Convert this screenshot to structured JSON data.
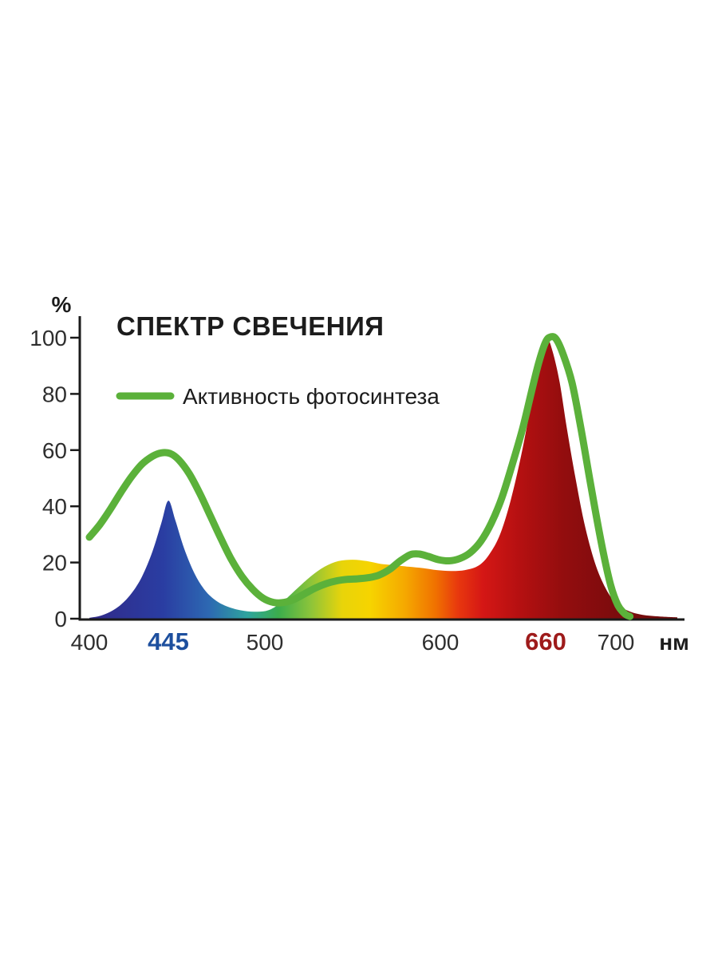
{
  "page": {
    "background": "#ffffff"
  },
  "chart_data": {
    "type": "area",
    "title": "СПЕКТР СВЕЧЕНИЯ",
    "ylabel": "%",
    "x_unit": "нм",
    "axis_color": "#1a1a1a",
    "tick_color": "#2e2e2e",
    "ylim": [
      0,
      100
    ],
    "xlim": [
      400,
      735
    ],
    "yticks": [
      0,
      20,
      40,
      60,
      80,
      100
    ],
    "xticks": [
      {
        "value": 400,
        "label": "400",
        "color": "#2e2e2e",
        "bold": false
      },
      {
        "value": 445,
        "label": "445",
        "color": "#1d4f9e",
        "bold": true
      },
      {
        "value": 500,
        "label": "500",
        "color": "#2e2e2e",
        "bold": false
      },
      {
        "value": 600,
        "label": "600",
        "color": "#2e2e2e",
        "bold": false
      },
      {
        "value": 660,
        "label": "660",
        "color": "#9e1b1b",
        "bold": true
      },
      {
        "value": 700,
        "label": "700",
        "color": "#2e2e2e",
        "bold": false
      }
    ],
    "legend": {
      "label": "Активность фотосинтеза",
      "color": "#5bb13a"
    },
    "series": [
      {
        "name": "emission-spectrum",
        "type": "area-gradient",
        "points": [
          [
            400,
            0.3
          ],
          [
            406,
            1
          ],
          [
            412,
            2.5
          ],
          [
            418,
            5
          ],
          [
            424,
            9
          ],
          [
            430,
            15
          ],
          [
            436,
            24
          ],
          [
            441,
            34
          ],
          [
            445,
            42
          ],
          [
            449,
            35
          ],
          [
            454,
            25
          ],
          [
            460,
            16
          ],
          [
            466,
            10
          ],
          [
            472,
            6.5
          ],
          [
            478,
            4.5
          ],
          [
            486,
            3
          ],
          [
            494,
            2.5
          ],
          [
            502,
            3
          ],
          [
            510,
            6
          ],
          [
            518,
            10.5
          ],
          [
            526,
            15
          ],
          [
            534,
            18.5
          ],
          [
            542,
            20.5
          ],
          [
            550,
            21
          ],
          [
            558,
            20.5
          ],
          [
            566,
            19.5
          ],
          [
            574,
            19
          ],
          [
            582,
            18.5
          ],
          [
            590,
            18
          ],
          [
            598,
            17.3
          ],
          [
            606,
            17
          ],
          [
            614,
            17.3
          ],
          [
            622,
            19
          ],
          [
            628,
            23
          ],
          [
            634,
            30
          ],
          [
            640,
            42
          ],
          [
            646,
            58
          ],
          [
            651,
            74
          ],
          [
            655,
            87
          ],
          [
            658,
            95
          ],
          [
            661,
            99.5
          ],
          [
            664,
            95
          ],
          [
            668,
            84
          ],
          [
            672,
            68
          ],
          [
            677,
            50
          ],
          [
            682,
            34
          ],
          [
            688,
            20
          ],
          [
            694,
            11
          ],
          [
            700,
            5.5
          ],
          [
            707,
            2.8
          ],
          [
            715,
            1.4
          ],
          [
            725,
            0.8
          ],
          [
            735,
            0.5
          ]
        ]
      },
      {
        "name": "photosynthesis-activity",
        "type": "line",
        "color": "#5bb13a",
        "points": [
          [
            400,
            29
          ],
          [
            406,
            33.5
          ],
          [
            412,
            39
          ],
          [
            418,
            45
          ],
          [
            424,
            50.5
          ],
          [
            430,
            55
          ],
          [
            436,
            57.8
          ],
          [
            441,
            59
          ],
          [
            446,
            58.8
          ],
          [
            451,
            56.5
          ],
          [
            457,
            51.5
          ],
          [
            463,
            44.5
          ],
          [
            469,
            36.5
          ],
          [
            475,
            28.5
          ],
          [
            481,
            21
          ],
          [
            487,
            15
          ],
          [
            493,
            10.5
          ],
          [
            499,
            7.3
          ],
          [
            505,
            5.8
          ],
          [
            511,
            5.8
          ],
          [
            517,
            7
          ],
          [
            523,
            9
          ],
          [
            529,
            11
          ],
          [
            535,
            12.5
          ],
          [
            541,
            13.5
          ],
          [
            547,
            14
          ],
          [
            553,
            14.2
          ],
          [
            559,
            14.6
          ],
          [
            565,
            15.5
          ],
          [
            571,
            17.5
          ],
          [
            577,
            20.5
          ],
          [
            583,
            22.8
          ],
          [
            588,
            23
          ],
          [
            593,
            22.2
          ],
          [
            599,
            21
          ],
          [
            605,
            20.6
          ],
          [
            611,
            21.4
          ],
          [
            617,
            23.5
          ],
          [
            623,
            27.5
          ],
          [
            629,
            34
          ],
          [
            635,
            43
          ],
          [
            641,
            55
          ],
          [
            647,
            68
          ],
          [
            652,
            81
          ],
          [
            656,
            91
          ],
          [
            660,
            98.5
          ],
          [
            663,
            100.3
          ],
          [
            666,
            99.5
          ],
          [
            670,
            94
          ],
          [
            675,
            84
          ],
          [
            680,
            68
          ],
          [
            685,
            50
          ],
          [
            689,
            36
          ],
          [
            693,
            23
          ],
          [
            697,
            12
          ],
          [
            701,
            5
          ],
          [
            705,
            1.8
          ],
          [
            708,
            0.8
          ]
        ]
      }
    ],
    "gradient_stops": [
      [
        400,
        "#312a88"
      ],
      [
        442,
        "#2a3da2"
      ],
      [
        468,
        "#2d68b2"
      ],
      [
        490,
        "#2ea49e"
      ],
      [
        508,
        "#3cad4c"
      ],
      [
        526,
        "#8cc43a"
      ],
      [
        544,
        "#e8d40a"
      ],
      [
        560,
        "#f6d400"
      ],
      [
        580,
        "#f5a800"
      ],
      [
        597,
        "#f07200"
      ],
      [
        610,
        "#e8380e"
      ],
      [
        624,
        "#d51715"
      ],
      [
        645,
        "#b51011"
      ],
      [
        670,
        "#930d0e"
      ],
      [
        700,
        "#7c0c0d"
      ],
      [
        735,
        "#6d0b0c"
      ]
    ]
  }
}
